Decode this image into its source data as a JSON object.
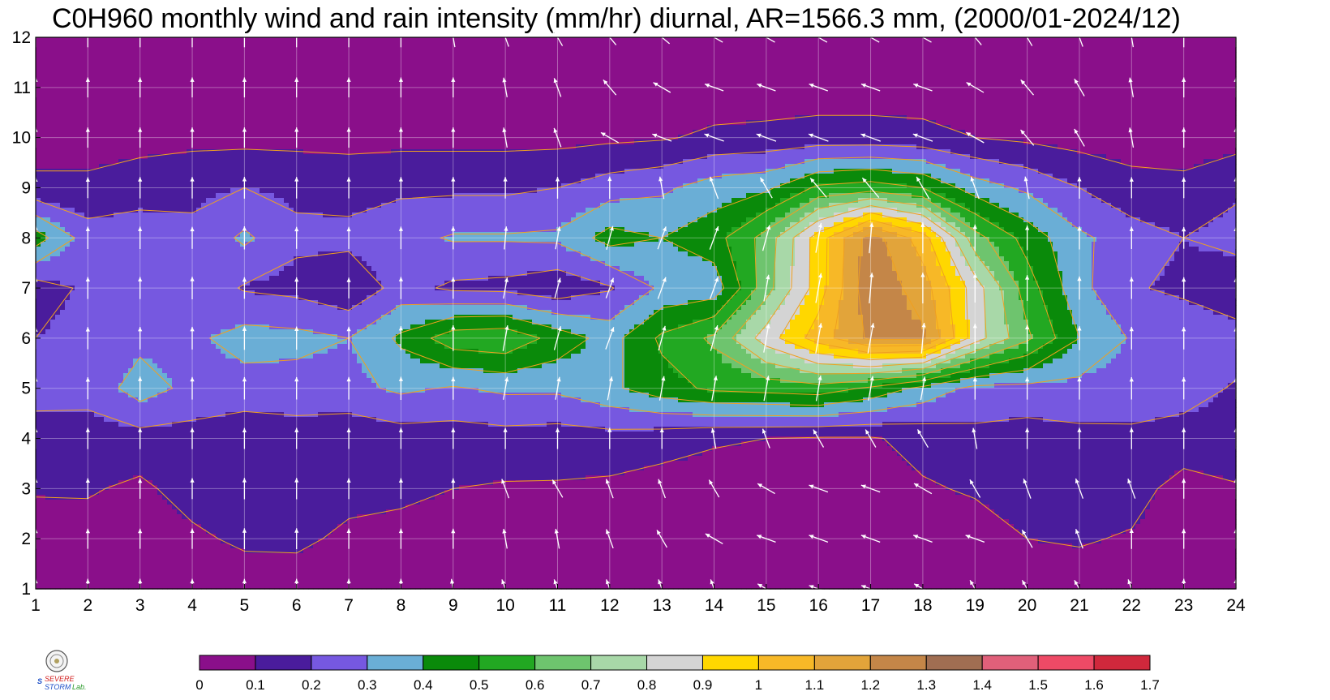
{
  "title": "C0H960 monthly wind and rain intensity (mm/hr) diurnal, AR=1566.3 mm, (2000/01-2024/12)",
  "chart_data": {
    "type": "heatmap",
    "title": "C0H960 monthly wind and rain intensity (mm/hr) diurnal, AR=1566.3 mm, (2000/01-2024/12)",
    "xlabel": "",
    "ylabel": "",
    "x_ticks": [
      1,
      2,
      3,
      4,
      5,
      6,
      7,
      8,
      9,
      10,
      11,
      12,
      13,
      14,
      15,
      16,
      17,
      18,
      19,
      20,
      21,
      22,
      23,
      24
    ],
    "y_ticks": [
      1,
      2,
      3,
      4,
      5,
      6,
      7,
      8,
      9,
      10,
      11,
      12
    ],
    "xlim": [
      1,
      24
    ],
    "ylim": [
      1,
      12
    ],
    "grid": true,
    "colorbar": {
      "levels": [
        0,
        0.1,
        0.2,
        0.3,
        0.4,
        0.5,
        0.6,
        0.7,
        0.8,
        0.9,
        1,
        1.1,
        1.2,
        1.3,
        1.4,
        1.5,
        1.6,
        1.7
      ],
      "labels": [
        "0",
        "0.1",
        "0.2",
        "0.3",
        "0.4",
        "0.5",
        "0.6",
        "0.7",
        "0.8",
        "0.9",
        "1",
        "1.1",
        "1.2",
        "1.3",
        "1.4",
        "1.5",
        "1.6",
        "1.7"
      ],
      "colors": [
        "#8a0f8a",
        "#4a1c9c",
        "#7658e0",
        "#6aaed6",
        "#0a8a0a",
        "#22a822",
        "#6ec46e",
        "#a8d8a8",
        "#d4d4d4",
        "#ffd700",
        "#f7b827",
        "#e2a43a",
        "#c48648",
        "#a06e52",
        "#e0607a",
        "#ee4a66",
        "#d0283c"
      ]
    },
    "z_hour_month": [
      [
        0.05,
        0.05,
        0.05,
        0.05,
        0.04,
        0.05,
        0.05,
        0.05,
        0.05,
        0.05,
        0.05,
        0.05,
        0.05,
        0.05,
        0.05,
        0.05,
        0.05,
        0.05,
        0.05,
        0.05,
        0.05,
        0.05,
        0.06,
        0.06
      ],
      [
        0.05,
        0.06,
        0.06,
        0.08,
        0.12,
        0.12,
        0.08,
        0.07,
        0.06,
        0.06,
        0.06,
        0.06,
        0.06,
        0.06,
        0.06,
        0.06,
        0.06,
        0.06,
        0.06,
        0.1,
        0.11,
        0.09,
        0.06,
        0.06
      ],
      [
        0.11,
        0.11,
        0.08,
        0.14,
        0.16,
        0.16,
        0.13,
        0.12,
        0.1,
        0.09,
        0.09,
        0.08,
        0.06,
        0.06,
        0.06,
        0.06,
        0.06,
        0.09,
        0.11,
        0.14,
        0.16,
        0.14,
        0.06,
        0.09
      ],
      [
        0.14,
        0.16,
        0.16,
        0.16,
        0.13,
        0.15,
        0.13,
        0.15,
        0.15,
        0.16,
        0.15,
        0.16,
        0.14,
        0.11,
        0.1,
        0.09,
        0.09,
        0.13,
        0.17,
        0.15,
        0.17,
        0.18,
        0.16,
        0.17
      ],
      [
        0.25,
        0.23,
        0.35,
        0.27,
        0.26,
        0.26,
        0.27,
        0.32,
        0.29,
        0.32,
        0.32,
        0.38,
        0.46,
        0.52,
        0.54,
        0.56,
        0.48,
        0.37,
        0.27,
        0.27,
        0.27,
        0.25,
        0.24,
        0.19
      ],
      [
        0.2,
        0.24,
        0.27,
        0.28,
        0.34,
        0.33,
        0.3,
        0.42,
        0.56,
        0.58,
        0.46,
        0.36,
        0.52,
        0.62,
        0.85,
        1.05,
        1.22,
        1.22,
        0.85,
        0.62,
        0.4,
        0.29,
        0.27,
        0.25
      ],
      [
        0.15,
        0.22,
        0.23,
        0.27,
        0.19,
        0.17,
        0.12,
        0.24,
        0.18,
        0.17,
        0.13,
        0.19,
        0.32,
        0.34,
        0.66,
        0.95,
        1.28,
        1.15,
        0.85,
        0.55,
        0.33,
        0.21,
        0.18,
        0.12
      ],
      [
        0.45,
        0.25,
        0.25,
        0.22,
        0.32,
        0.22,
        0.23,
        0.27,
        0.31,
        0.31,
        0.32,
        0.44,
        0.4,
        0.46,
        0.64,
        0.95,
        1.25,
        1.05,
        0.64,
        0.46,
        0.32,
        0.25,
        0.2,
        0.24
      ],
      [
        0.12,
        0.12,
        0.16,
        0.18,
        0.2,
        0.18,
        0.16,
        0.18,
        0.18,
        0.18,
        0.2,
        0.25,
        0.28,
        0.35,
        0.38,
        0.52,
        0.55,
        0.5,
        0.35,
        0.28,
        0.2,
        0.13,
        0.12,
        0.18
      ],
      [
        0.06,
        0.06,
        0.06,
        0.07,
        0.07,
        0.07,
        0.07,
        0.07,
        0.07,
        0.07,
        0.07,
        0.08,
        0.09,
        0.12,
        0.13,
        0.14,
        0.14,
        0.13,
        0.1,
        0.08,
        0.06,
        0.06,
        0.06,
        0.06
      ],
      [
        0.04,
        0.04,
        0.04,
        0.04,
        0.04,
        0.04,
        0.04,
        0.04,
        0.04,
        0.04,
        0.04,
        0.04,
        0.04,
        0.04,
        0.04,
        0.05,
        0.05,
        0.05,
        0.05,
        0.04,
        0.04,
        0.04,
        0.04,
        0.04
      ],
      [
        0.04,
        0.04,
        0.04,
        0.04,
        0.04,
        0.04,
        0.04,
        0.04,
        0.04,
        0.04,
        0.04,
        0.04,
        0.04,
        0.04,
        0.04,
        0.04,
        0.04,
        0.04,
        0.04,
        0.04,
        0.04,
        0.04,
        0.04,
        0.04
      ]
    ],
    "wind_arrow_angle_deg_hour_month": [
      [
        90,
        90,
        90,
        90,
        90,
        90,
        90,
        90,
        100,
        110,
        110,
        110,
        110,
        110,
        150,
        160,
        160,
        150,
        120,
        120,
        120,
        110,
        90,
        90
      ],
      [
        90,
        90,
        90,
        90,
        90,
        90,
        90,
        90,
        90,
        100,
        100,
        110,
        120,
        150,
        160,
        160,
        160,
        160,
        160,
        120,
        110,
        90,
        90,
        90
      ],
      [
        90,
        90,
        90,
        90,
        90,
        90,
        90,
        90,
        90,
        110,
        120,
        110,
        110,
        120,
        150,
        160,
        160,
        150,
        120,
        110,
        110,
        110,
        90,
        90
      ],
      [
        90,
        90,
        90,
        90,
        90,
        90,
        90,
        90,
        90,
        90,
        90,
        90,
        90,
        100,
        110,
        120,
        120,
        120,
        100,
        90,
        90,
        90,
        90,
        90
      ],
      [
        90,
        90,
        90,
        90,
        90,
        90,
        90,
        90,
        90,
        80,
        80,
        80,
        80,
        80,
        80,
        80,
        80,
        80,
        90,
        90,
        90,
        90,
        90,
        90
      ],
      [
        90,
        90,
        90,
        90,
        90,
        90,
        90,
        90,
        90,
        80,
        75,
        70,
        75,
        75,
        80,
        80,
        80,
        85,
        90,
        90,
        90,
        90,
        90,
        90
      ],
      [
        90,
        90,
        90,
        90,
        90,
        90,
        90,
        90,
        90,
        80,
        75,
        70,
        70,
        70,
        80,
        80,
        85,
        90,
        90,
        90,
        90,
        90,
        90,
        90
      ],
      [
        90,
        90,
        90,
        90,
        90,
        90,
        90,
        90,
        90,
        85,
        80,
        75,
        70,
        70,
        75,
        80,
        85,
        90,
        90,
        90,
        90,
        90,
        90,
        90
      ],
      [
        90,
        90,
        90,
        90,
        90,
        90,
        90,
        90,
        90,
        90,
        90,
        90,
        100,
        110,
        120,
        130,
        130,
        120,
        110,
        100,
        90,
        90,
        90,
        90
      ],
      [
        90,
        90,
        90,
        90,
        90,
        90,
        90,
        90,
        90,
        100,
        110,
        150,
        160,
        160,
        160,
        160,
        160,
        160,
        150,
        130,
        120,
        100,
        90,
        90
      ],
      [
        90,
        90,
        90,
        90,
        90,
        90,
        90,
        90,
        90,
        100,
        110,
        130,
        150,
        160,
        160,
        160,
        160,
        160,
        150,
        130,
        120,
        100,
        90,
        90
      ],
      [
        90,
        90,
        90,
        90,
        90,
        90,
        90,
        90,
        100,
        110,
        120,
        130,
        140,
        150,
        150,
        150,
        150,
        150,
        130,
        120,
        110,
        100,
        90,
        90
      ]
    ]
  },
  "logo": {
    "text_top": "S",
    "text_mid": "SEVERE",
    "text_bottom": "STORM",
    "lab": "Lab."
  }
}
